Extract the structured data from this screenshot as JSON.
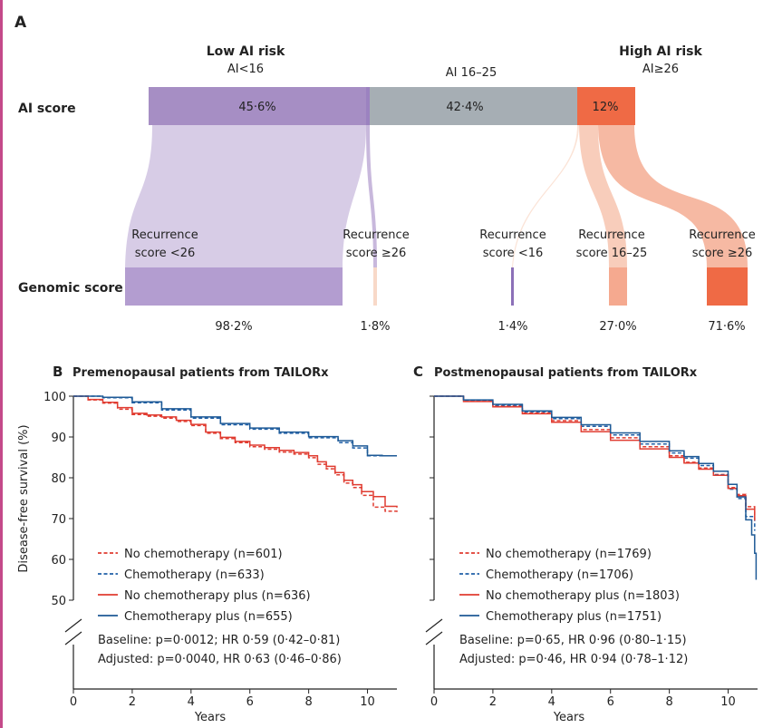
{
  "chart_data": [
    {
      "type": "sankey",
      "panel_label": "A",
      "row_labels": {
        "top": "AI score",
        "bottom": "Genomic score"
      },
      "ai_groups": [
        {
          "name": "Low AI risk",
          "label": "AI<16",
          "percent_label": "45·6%",
          "value": 45.6,
          "color": "#a68ec4"
        },
        {
          "name": "",
          "label": "AI 16–25",
          "percent_label": "42·4%",
          "value": 42.4,
          "color": "#a6aeb4"
        },
        {
          "name": "High AI risk",
          "label": "AI≥26",
          "percent_label": "12%",
          "value": 12.0,
          "color": "#ef6a45"
        }
      ],
      "genomic_groups": [
        {
          "label_line1": "Recurrence",
          "label_line2": "score <26",
          "percent_label": "98·2%",
          "value": 98.2,
          "color": "#bba9d4"
        },
        {
          "label_line1": "Recurrence",
          "label_line2": "score ≥26",
          "percent_label": "1·8%",
          "value": 1.8,
          "color": "#f8d9c8"
        },
        {
          "label_line1": "Recurrence",
          "label_line2": "score <16",
          "percent_label": "1·4%",
          "value": 1.4,
          "color": "#9b82c0"
        },
        {
          "label_line1": "Recurrence",
          "label_line2": "score 16–25",
          "percent_label": "27·0%",
          "value": 27.0,
          "color": "#f5a98f"
        },
        {
          "label_line1": "Recurrence",
          "label_line2": "score ≥26",
          "percent_label": "71·6%",
          "value": 71.6,
          "color": "#ef6a45"
        }
      ]
    },
    {
      "type": "line",
      "panel_label": "B",
      "title": "Premenopausal patients from TAILORx",
      "xlabel": "Years",
      "ylabel": "Disease-free survival (%)",
      "xlim": [
        0,
        11
      ],
      "ylim": [
        50,
        100
      ],
      "xticks": [
        0,
        2,
        4,
        6,
        8,
        10
      ],
      "yticks": [
        50,
        60,
        70,
        80,
        90,
        100
      ],
      "series": [
        {
          "name": "No chemotherapy (n=601)",
          "color": "#e03c31",
          "dash": true,
          "x": [
            0,
            0.5,
            1,
            1.5,
            2,
            2.5,
            3,
            3.5,
            4,
            4.5,
            5,
            5.5,
            6,
            6.5,
            7,
            7.5,
            8,
            8.3,
            8.6,
            8.9,
            9.2,
            9.5,
            9.8,
            10.2,
            10.6,
            11
          ],
          "y": [
            100,
            99.1,
            98.3,
            96.8,
            95.5,
            95.1,
            94.6,
            93.8,
            92.8,
            90.9,
            89.6,
            88.6,
            87.6,
            87,
            86.3,
            85.8,
            84.9,
            83.3,
            82.2,
            80.7,
            78.7,
            77.6,
            75.7,
            72.8,
            71.8,
            71.6
          ]
        },
        {
          "name": "Chemotherapy (n=633)",
          "color": "#2060a8",
          "dash": true,
          "x": [
            0,
            1,
            2,
            3,
            4,
            5,
            6,
            7,
            8,
            9,
            9.5,
            10,
            10.5,
            11
          ],
          "y": [
            100,
            99.6,
            98.4,
            96.6,
            94.6,
            93,
            91.9,
            90.9,
            89.8,
            88.6,
            87.3,
            85.4,
            85.4,
            85.4
          ]
        },
        {
          "name": "No chemotherapy plus (n=636)",
          "color": "#e03c31",
          "dash": false,
          "x": [
            0,
            0.5,
            1,
            1.5,
            2,
            2.5,
            3,
            3.5,
            4,
            4.5,
            5,
            5.5,
            6,
            6.5,
            7,
            7.5,
            8,
            8.3,
            8.6,
            8.9,
            9.2,
            9.5,
            9.8,
            10.2,
            10.6,
            11
          ],
          "y": [
            100,
            99.2,
            98.5,
            97.2,
            95.8,
            95.4,
            94.9,
            94.1,
            93.1,
            91.2,
            89.9,
            88.9,
            88,
            87.4,
            86.7,
            86.2,
            85.4,
            83.9,
            82.8,
            81.3,
            79.4,
            78.3,
            76.6,
            75.4,
            73,
            72.7
          ]
        },
        {
          "name": "Chemotherapy plus (n=655)",
          "color": "#1e5a96",
          "dash": false,
          "x": [
            0,
            1,
            2,
            3,
            4,
            5,
            6,
            7,
            8,
            9,
            9.5,
            10,
            10.5,
            11
          ],
          "y": [
            100,
            99.7,
            98.6,
            96.9,
            94.9,
            93.3,
            92.2,
            91.2,
            90.1,
            89.1,
            87.8,
            85.5,
            85.4,
            85.4
          ]
        }
      ],
      "stats": [
        "Baseline: p=0·0012; HR 0·59 (0·42–0·81)",
        "Adjusted: p=0·0040, HR 0·63 (0·46–0·86)"
      ]
    },
    {
      "type": "line",
      "panel_label": "C",
      "title": "Postmenopausal patients from TAILORx",
      "xlabel": "Years",
      "ylabel": "",
      "xlim": [
        0,
        11
      ],
      "ylim": [
        50,
        100
      ],
      "xticks": [
        0,
        2,
        4,
        6,
        8,
        10
      ],
      "yticks": [
        50,
        60,
        70,
        80,
        90,
        100
      ],
      "series": [
        {
          "name": "No chemotherapy (n=1769)",
          "color": "#e03c31",
          "dash": true,
          "x": [
            0,
            1,
            2,
            3,
            4,
            5,
            6,
            7,
            8,
            8.5,
            9,
            9.5,
            10,
            10.3,
            10.6,
            10.9
          ],
          "y": [
            100,
            98.8,
            97.6,
            95.9,
            94,
            91.8,
            89.8,
            87.6,
            85.4,
            83.8,
            82.4,
            80.8,
            77.6,
            75.9,
            72.9,
            70.6
          ]
        },
        {
          "name": "Chemotherapy (n=1706)",
          "color": "#2060a8",
          "dash": true,
          "x": [
            0,
            1,
            2,
            3,
            4,
            5,
            6,
            7,
            8,
            8.5,
            9,
            9.5,
            10,
            10.3,
            10.6,
            10.9
          ],
          "y": [
            100,
            99,
            97.8,
            96.2,
            94.5,
            92.6,
            90.5,
            88.3,
            86.1,
            84.8,
            83,
            80.7,
            77.2,
            74.9,
            70.5,
            67
          ]
        },
        {
          "name": "No chemotherapy plus (n=1803)",
          "color": "#e03c31",
          "dash": false,
          "x": [
            0,
            1,
            2,
            3,
            4,
            5,
            6,
            7,
            8,
            8.5,
            9,
            9.5,
            10,
            10.3,
            10.6,
            10.9
          ],
          "y": [
            100,
            98.7,
            97.4,
            95.7,
            93.6,
            91.3,
            89.2,
            87.1,
            85,
            83.6,
            82.1,
            80.6,
            77.4,
            75.6,
            72.3,
            69.5
          ]
        },
        {
          "name": "Chemotherapy plus (n=1751)",
          "color": "#1e5a96",
          "dash": false,
          "x": [
            0,
            1,
            2,
            3,
            4,
            5,
            6,
            7,
            8,
            8.5,
            9,
            9.5,
            10,
            10.3,
            10.6,
            10.8,
            10.9,
            10.95
          ],
          "y": [
            100,
            99.1,
            98,
            96.4,
            94.8,
            93,
            91,
            88.9,
            86.6,
            85.2,
            83.5,
            81.6,
            78.4,
            75.3,
            69.7,
            66,
            61.5,
            55
          ]
        }
      ],
      "stats": [
        "Baseline: p=0·65, HR 0·96 (0·80–1·15)",
        "Adjusted: p=0·46, HR 0·94 (0·78–1·12)"
      ]
    }
  ]
}
